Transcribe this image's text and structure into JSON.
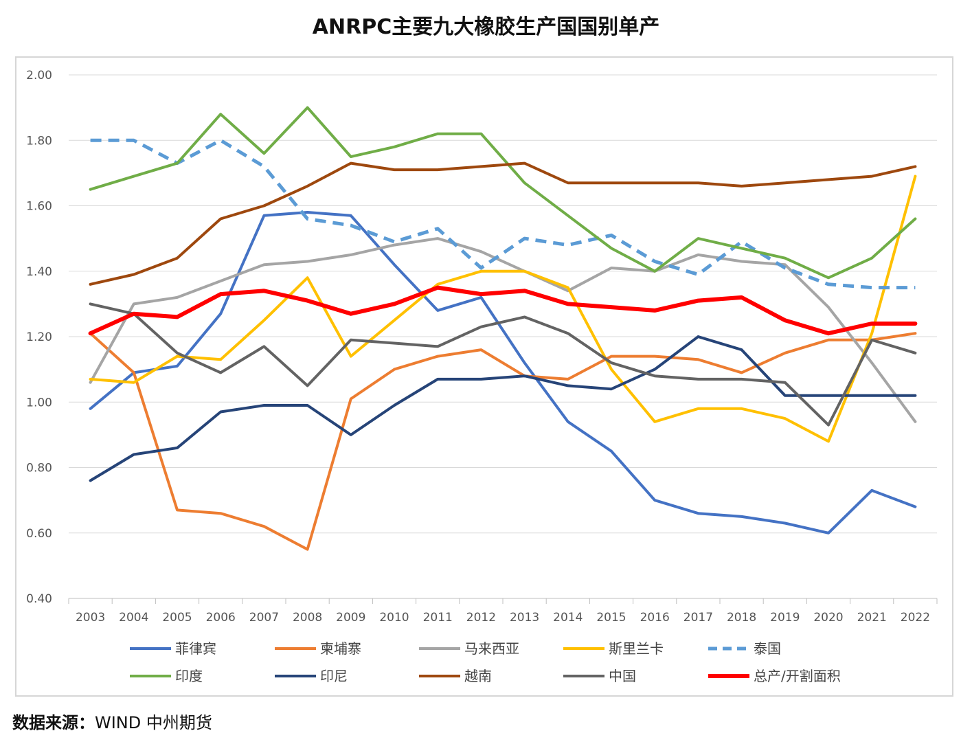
{
  "title": "ANRPC主要九大橡胶生产国国别单产",
  "source": {
    "label": "数据来源：",
    "value": "WIND  中州期货"
  },
  "chart_data": {
    "type": "line",
    "title": "ANRPC主要九大橡胶生产国国别单产",
    "xlabel": "",
    "ylabel": "",
    "ylim": [
      0.4,
      2.0
    ],
    "yticks": [
      "0.40",
      "0.60",
      "0.80",
      "1.00",
      "1.20",
      "1.40",
      "1.60",
      "1.80",
      "2.00"
    ],
    "grid": true,
    "legend_position": "bottom",
    "categories": [
      "2003",
      "2004",
      "2005",
      "2006",
      "2007",
      "2008",
      "2009",
      "2010",
      "2011",
      "2012",
      "2013",
      "2014",
      "2015",
      "2016",
      "2017",
      "2018",
      "2019",
      "2020",
      "2021",
      "2022"
    ],
    "series": [
      {
        "name": "菲律宾",
        "color": "#4472C4",
        "dashed": false,
        "width": 4,
        "values": [
          0.98,
          1.09,
          1.11,
          1.27,
          1.57,
          1.58,
          1.57,
          1.42,
          1.28,
          1.32,
          1.12,
          0.94,
          0.85,
          0.7,
          0.66,
          0.65,
          0.63,
          0.6,
          0.73,
          0.68
        ]
      },
      {
        "name": "柬埔寨",
        "color": "#ED7D31",
        "dashed": false,
        "width": 4,
        "values": [
          1.21,
          1.09,
          0.67,
          0.66,
          0.62,
          0.55,
          1.01,
          1.1,
          1.14,
          1.16,
          1.08,
          1.07,
          1.14,
          1.14,
          1.13,
          1.09,
          1.15,
          1.19,
          1.19,
          1.21
        ]
      },
      {
        "name": "马来西亚",
        "color": "#A5A5A5",
        "dashed": false,
        "width": 4,
        "values": [
          1.06,
          1.3,
          1.32,
          1.37,
          1.42,
          1.43,
          1.45,
          1.48,
          1.5,
          1.46,
          1.4,
          1.34,
          1.41,
          1.4,
          1.45,
          1.43,
          1.42,
          1.29,
          1.12,
          0.94
        ]
      },
      {
        "name": "斯里兰卡",
        "color": "#FFC000",
        "dashed": false,
        "width": 4,
        "values": [
          1.07,
          1.06,
          1.14,
          1.13,
          1.25,
          1.38,
          1.14,
          1.25,
          1.36,
          1.4,
          1.4,
          1.35,
          1.1,
          0.94,
          0.98,
          0.98,
          0.95,
          0.88,
          1.21,
          1.69
        ]
      },
      {
        "name": "泰国",
        "color": "#5B9BD5",
        "dashed": true,
        "width": 5,
        "values": [
          1.8,
          1.8,
          1.73,
          1.8,
          1.72,
          1.56,
          1.54,
          1.49,
          1.53,
          1.41,
          1.5,
          1.48,
          1.51,
          1.43,
          1.39,
          1.49,
          1.41,
          1.36,
          1.35,
          1.35
        ]
      },
      {
        "name": "印度",
        "color": "#70AD47",
        "dashed": false,
        "width": 4,
        "values": [
          1.65,
          1.69,
          1.73,
          1.88,
          1.76,
          1.9,
          1.75,
          1.78,
          1.82,
          1.82,
          1.67,
          1.57,
          1.47,
          1.4,
          1.5,
          1.47,
          1.44,
          1.38,
          1.44,
          1.56
        ]
      },
      {
        "name": "印尼",
        "color": "#264478",
        "dashed": false,
        "width": 4,
        "values": [
          0.76,
          0.84,
          0.86,
          0.97,
          0.99,
          0.99,
          0.9,
          0.99,
          1.07,
          1.07,
          1.08,
          1.05,
          1.04,
          1.1,
          1.2,
          1.16,
          1.02,
          1.02,
          1.02,
          1.02
        ]
      },
      {
        "name": "越南",
        "color": "#9E480E",
        "dashed": false,
        "width": 4,
        "values": [
          1.36,
          1.39,
          1.44,
          1.56,
          1.6,
          1.66,
          1.73,
          1.71,
          1.71,
          1.72,
          1.73,
          1.67,
          1.67,
          1.67,
          1.67,
          1.66,
          1.67,
          1.68,
          1.69,
          1.72
        ]
      },
      {
        "name": "中国",
        "color": "#636363",
        "dashed": false,
        "width": 4,
        "values": [
          1.3,
          1.27,
          1.15,
          1.09,
          1.17,
          1.05,
          1.19,
          1.18,
          1.17,
          1.23,
          1.26,
          1.21,
          1.12,
          1.08,
          1.07,
          1.07,
          1.06,
          0.93,
          1.19,
          1.15
        ]
      },
      {
        "name": "总产/开割面积",
        "color": "#FF0000",
        "dashed": false,
        "width": 6,
        "values": [
          1.21,
          1.27,
          1.26,
          1.33,
          1.34,
          1.31,
          1.27,
          1.3,
          1.35,
          1.33,
          1.34,
          1.3,
          1.29,
          1.28,
          1.31,
          1.32,
          1.25,
          1.21,
          1.24,
          1.24
        ]
      }
    ]
  }
}
